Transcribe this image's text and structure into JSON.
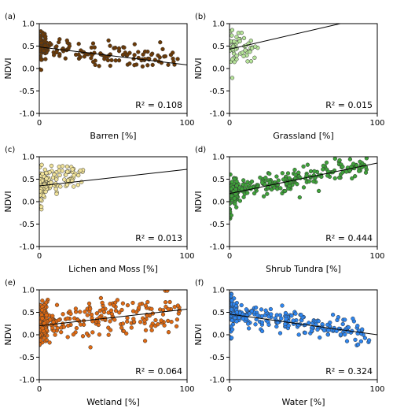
{
  "chart_data": [
    {
      "type": "scatter",
      "panel_label": "(a)",
      "xlabel": "Barren [%]",
      "ylabel": "NDVI",
      "xlim": [
        0,
        100
      ],
      "ylim": [
        -1.0,
        1.0
      ],
      "xticks": [
        "0",
        "100"
      ],
      "yticks": [
        "1.0",
        "0.5",
        "0.0",
        "-0.5",
        "-1.0"
      ],
      "r2_text": "R² =  0.108",
      "point_color": "#6b3a07",
      "fit": {
        "x": [
          0,
          100
        ],
        "y": [
          0.48,
          0.08
        ]
      },
      "points_summary": {
        "x_range": [
          0,
          95
        ],
        "y_center": [
          0.5,
          0.18
        ],
        "spread": 0.12,
        "n": 200
      }
    },
    {
      "type": "scatter",
      "panel_label": "(b)",
      "xlabel": "Grassland [%]",
      "ylabel": "NDVI",
      "xlim": [
        0,
        100
      ],
      "ylim": [
        -1.0,
        1.0
      ],
      "xticks": [
        "0",
        "100"
      ],
      "yticks": [
        "1.0",
        "0.5",
        "0.0",
        "-0.5",
        "-1.0"
      ],
      "r2_text": "R² =  0.015",
      "point_color": "#b6e39a",
      "fit": {
        "x": [
          0,
          75
        ],
        "y": [
          0.43,
          1.0
        ]
      },
      "points_summary": {
        "x_range": [
          0,
          20
        ],
        "y_center": [
          0.45,
          0.55
        ],
        "spread": 0.15,
        "n": 60
      }
    },
    {
      "type": "scatter",
      "panel_label": "(c)",
      "xlabel": "Lichen and Moss [%]",
      "ylabel": "NDVI",
      "xlim": [
        0,
        100
      ],
      "ylim": [
        -1.0,
        1.0
      ],
      "xticks": [
        "0",
        "100"
      ],
      "yticks": [
        "1.0",
        "0.5",
        "0.0",
        "-0.5",
        "-1.0"
      ],
      "r2_text": "R² =  0.013",
      "point_color": "#f1e39a",
      "fit": {
        "x": [
          0,
          100
        ],
        "y": [
          0.35,
          0.72
        ]
      },
      "points_summary": {
        "x_range": [
          0,
          30
        ],
        "y_center": [
          0.4,
          0.55
        ],
        "spread": 0.15,
        "n": 150
      }
    },
    {
      "type": "scatter",
      "panel_label": "(d)",
      "xlabel": "Shrub Tundra [%]",
      "ylabel": "NDVI",
      "xlim": [
        0,
        100
      ],
      "ylim": [
        -1.0,
        1.0
      ],
      "xticks": [
        "0",
        "100"
      ],
      "yticks": [
        "1.0",
        "0.5",
        "0.0",
        "-0.5",
        "-1.0"
      ],
      "r2_text": "R² =  0.444",
      "point_color": "#3fa23a",
      "fit": {
        "x": [
          0,
          100
        ],
        "y": [
          0.18,
          0.86
        ]
      },
      "points_summary": {
        "x_range": [
          0,
          95
        ],
        "y_center": [
          0.2,
          0.8
        ],
        "spread": 0.12,
        "n": 300
      }
    },
    {
      "type": "scatter",
      "panel_label": "(e)",
      "xlabel": "Wetland [%]",
      "ylabel": "NDVI",
      "xlim": [
        0,
        100
      ],
      "ylim": [
        -1.0,
        1.0
      ],
      "xticks": [
        "0",
        "100"
      ],
      "yticks": [
        "1.0",
        "0.5",
        "0.0",
        "-0.5",
        "-1.0"
      ],
      "r2_text": "R² =  0.064",
      "point_color": "#e06a12",
      "fit": {
        "x": [
          0,
          100
        ],
        "y": [
          0.2,
          0.57
        ]
      },
      "points_summary": {
        "x_range": [
          0,
          95
        ],
        "y_center": [
          0.25,
          0.5
        ],
        "spread": 0.22,
        "n": 300
      }
    },
    {
      "type": "scatter",
      "panel_label": "(f)",
      "xlabel": "Water [%]",
      "ylabel": "NDVI",
      "xlim": [
        0,
        100
      ],
      "ylim": [
        -1.0,
        1.0
      ],
      "xticks": [
        "0",
        "100"
      ],
      "yticks": [
        "1.0",
        "0.5",
        "0.0",
        "-0.5",
        "-1.0"
      ],
      "r2_text": "R² =  0.324",
      "point_color": "#2e86f0",
      "fit": {
        "x": [
          0,
          100
        ],
        "y": [
          0.46,
          0.0
        ]
      },
      "points_summary": {
        "x_range": [
          0,
          95
        ],
        "y_center": [
          0.5,
          0.02
        ],
        "spread": 0.12,
        "n": 300
      }
    }
  ]
}
